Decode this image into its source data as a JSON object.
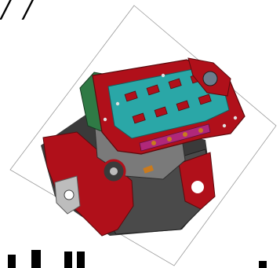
{
  "canvas": {
    "top_fragment": "/ /"
  },
  "model": {
    "icon": "engine-block-3d-model",
    "colors": {
      "body_red": "#b0101a",
      "dark_gray": "#3a3a3a",
      "mid_gray": "#7a7a7a",
      "light_gray": "#bdbdbd",
      "teal": "#2aa7a7",
      "green": "#2f7a45",
      "magenta": "#b0287a",
      "orange": "#c97a1e"
    }
  }
}
